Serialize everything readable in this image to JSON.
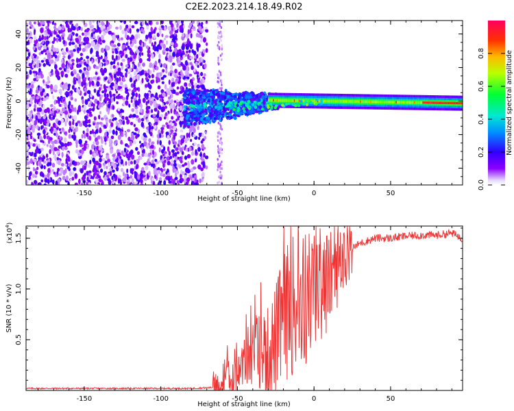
{
  "chart_data": [
    {
      "type": "heatmap",
      "title": "C2E2.2023.214.18.49.R02",
      "xlabel": "Height of straight line (km)",
      "ylabel": "Frequency (Hz)",
      "xlim": [
        -188,
        97
      ],
      "ylim": [
        -50,
        48
      ],
      "xticks": [
        -150,
        -100,
        -50,
        0,
        50
      ],
      "yticks": [
        -40,
        -20,
        0,
        20,
        40
      ],
      "colorbar": {
        "label": "Normalized spectral amplitude",
        "range": [
          0,
          1
        ],
        "ticks": [
          0.0,
          0.2,
          0.4,
          0.6,
          0.8
        ],
        "tick_labels": [
          "0.0",
          "0.2",
          "0.4",
          "0.6",
          "0.8"
        ],
        "colors": [
          "#ffffff",
          "#d8c8ff",
          "#8800ff",
          "#2200ff",
          "#00aaff",
          "#00ffaa",
          "#00ff00",
          "#aaff00",
          "#ffcc00",
          "#ff5500",
          "#ff0000",
          "#ff0066"
        ]
      },
      "regions": [
        {
          "name": "scattered noise",
          "x": [
            -188,
            -70
          ],
          "y": [
            -50,
            48
          ],
          "amplitude": 0.1
        },
        {
          "name": "transition",
          "x": [
            -70,
            -30
          ],
          "y": [
            -10,
            4
          ],
          "amplitude": 0.3
        },
        {
          "name": "narrow line",
          "x": [
            -30,
            97
          ],
          "y": [
            -2,
            2
          ],
          "amplitude": 0.9
        }
      ]
    },
    {
      "type": "line",
      "xlabel": "Height of straight line (km)",
      "ylabel": "SNR (10 * v/v)",
      "multiplier_label": "(x10",
      "multiplier_exp": "4",
      "multiplier_close": ")",
      "xlim": [
        -188,
        97
      ],
      "ylim": [
        0,
        1.62
      ],
      "xticks": [
        -150,
        -100,
        -50,
        0,
        50
      ],
      "yticks": [
        0.5,
        1.0,
        1.5
      ],
      "ytick_labels": [
        "0.5",
        "1.0",
        "1.5"
      ],
      "color": "#ee3333",
      "series": [
        {
          "name": "SNR",
          "x": [
            -188,
            -160,
            -130,
            -100,
            -80,
            -65,
            -60,
            -57,
            -55,
            -50,
            -45,
            -40,
            -35,
            -30,
            -25,
            -20,
            -15,
            -10,
            -5,
            0,
            5,
            10,
            15,
            20,
            25,
            30,
            40,
            50,
            60,
            70,
            80,
            90,
            97
          ],
          "y": [
            0.02,
            0.02,
            0.02,
            0.02,
            0.02,
            0.03,
            0.06,
            0.15,
            0.08,
            0.15,
            0.3,
            0.35,
            0.4,
            0.35,
            0.5,
            0.7,
            0.85,
            0.8,
            0.9,
            1.0,
            1.05,
            1.1,
            1.2,
            1.3,
            1.4,
            1.45,
            1.5,
            1.5,
            1.52,
            1.53,
            1.53,
            1.55,
            1.5
          ]
        }
      ]
    }
  ]
}
